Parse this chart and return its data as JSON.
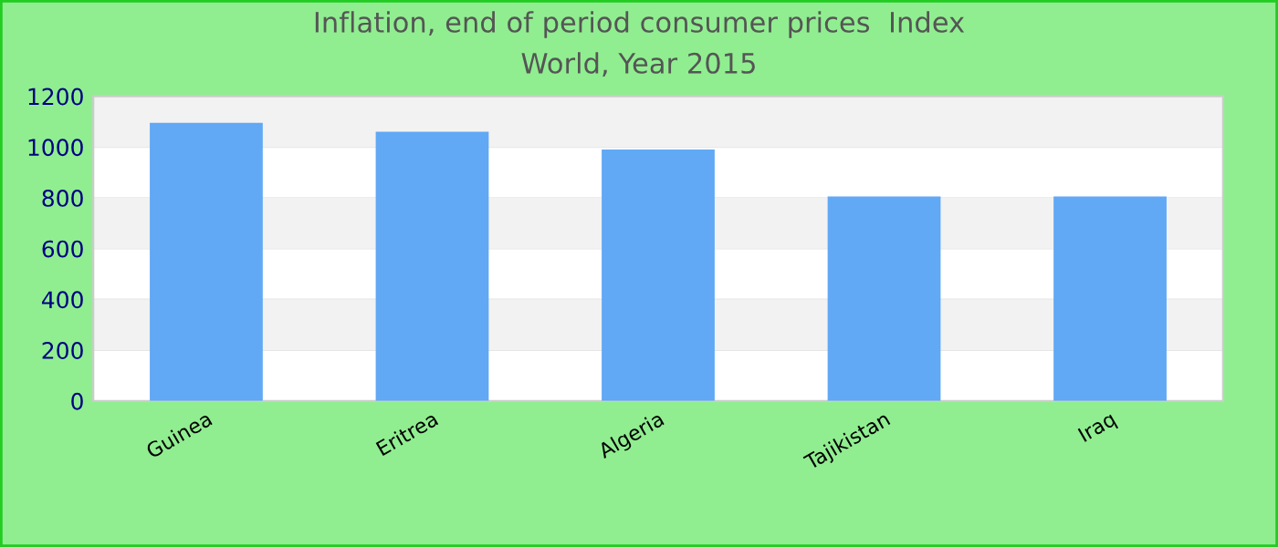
{
  "chart_data": {
    "type": "bar",
    "title": "Inflation, end of period consumer prices  Index",
    "subtitle": "World, Year 2015",
    "categories": [
      "Guinea",
      "Eritrea",
      "Algeria",
      "Tajikistan",
      "Iraq"
    ],
    "values": [
      1095,
      1060,
      990,
      805,
      805
    ],
    "color": "#61a8f5",
    "ylim": [
      0,
      1200
    ],
    "yticks": [
      0,
      200,
      400,
      600,
      800,
      1000,
      1200
    ],
    "grid": "y"
  }
}
